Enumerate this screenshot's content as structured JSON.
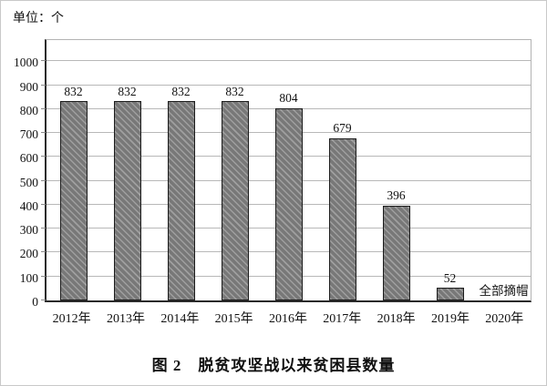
{
  "figure": {
    "unit_label": "单位：个",
    "caption": "图 2　脱贫攻坚战以来贫困县数量"
  },
  "chart_data": {
    "type": "bar",
    "title": "图 2　脱贫攻坚战以来贫困县数量",
    "unit_label": "单位：个",
    "categories": [
      "2012年",
      "2013年",
      "2014年",
      "2015年",
      "2016年",
      "2017年",
      "2018年",
      "2019年",
      "2020年"
    ],
    "values": [
      832,
      832,
      832,
      832,
      804,
      679,
      396,
      52,
      null
    ],
    "bar_value_labels": [
      "832",
      "832",
      "832",
      "832",
      "804",
      "679",
      "396",
      "52",
      ""
    ],
    "annotation": {
      "category": "2020年",
      "text": "全部摘帽"
    },
    "xlabel": "",
    "ylabel": "个",
    "ylim": [
      0,
      1100
    ],
    "y_ticks": [
      0,
      100,
      200,
      300,
      400,
      500,
      600,
      700,
      800,
      900,
      1000
    ],
    "grid": true,
    "legend": "none",
    "colors": {
      "bar_fill": "#787878",
      "bar_hatch": "#9f9f9f",
      "bar_border": "#1c1c1c",
      "gridline": "#b8b8b8",
      "axis": "#2a2a2a",
      "text": "#111111"
    }
  }
}
